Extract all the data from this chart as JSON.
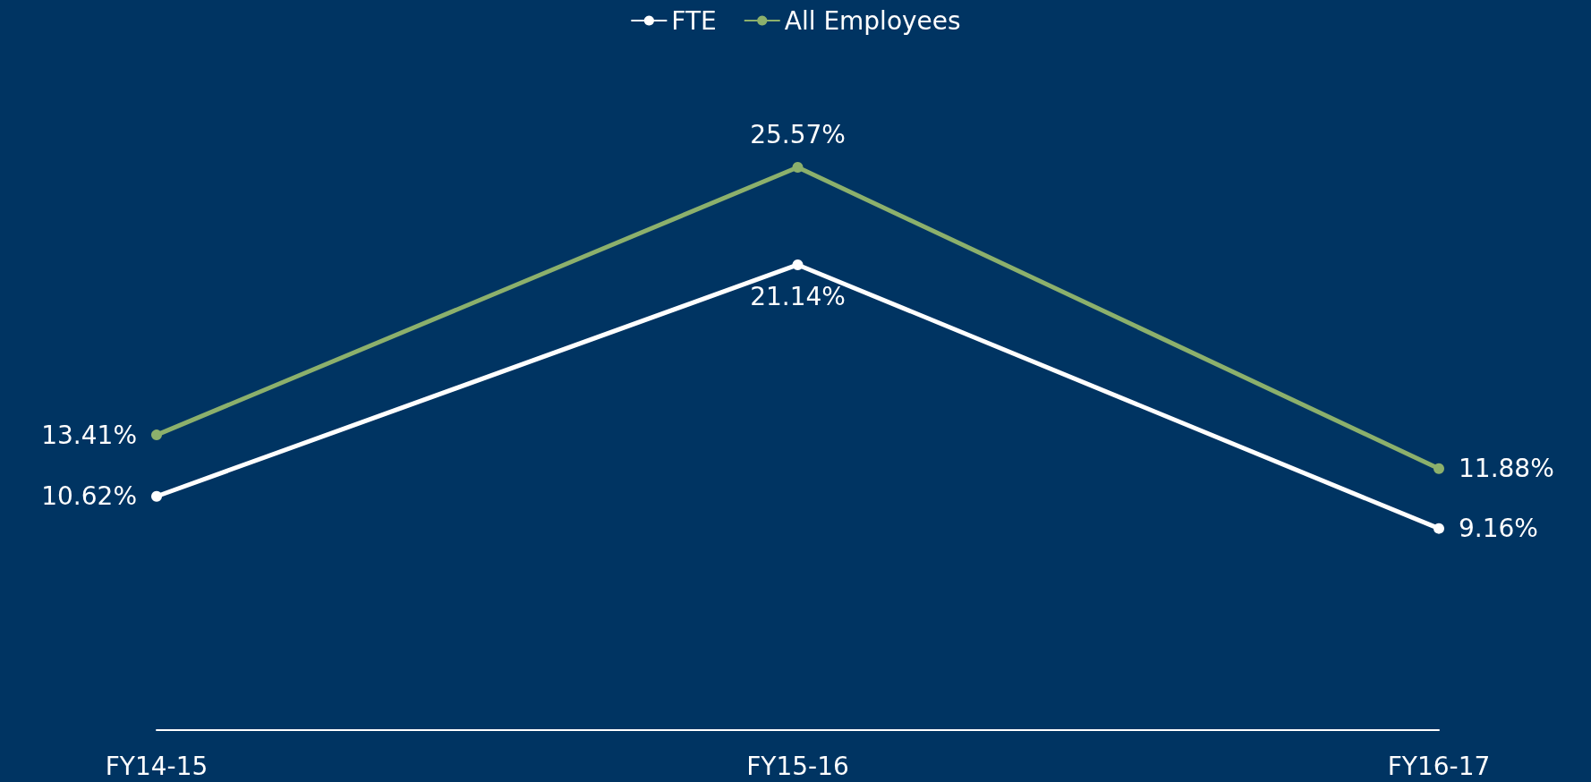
{
  "chart_data": {
    "type": "line",
    "categories": [
      "FY14-15",
      "FY15-16",
      "FY16-17"
    ],
    "series": [
      {
        "name": "FTE",
        "color": "#ffffff",
        "values": [
          10.62,
          21.14,
          9.16
        ],
        "value_labels": [
          "10.62%",
          "21.14%",
          "9.16%"
        ]
      },
      {
        "name": "All Employees",
        "color": "#8cb06c",
        "values": [
          13.41,
          25.57,
          11.88
        ],
        "value_labels": [
          "13.41%",
          "25.57%",
          "11.88%"
        ]
      }
    ],
    "legend": "top",
    "marker": "circle"
  }
}
